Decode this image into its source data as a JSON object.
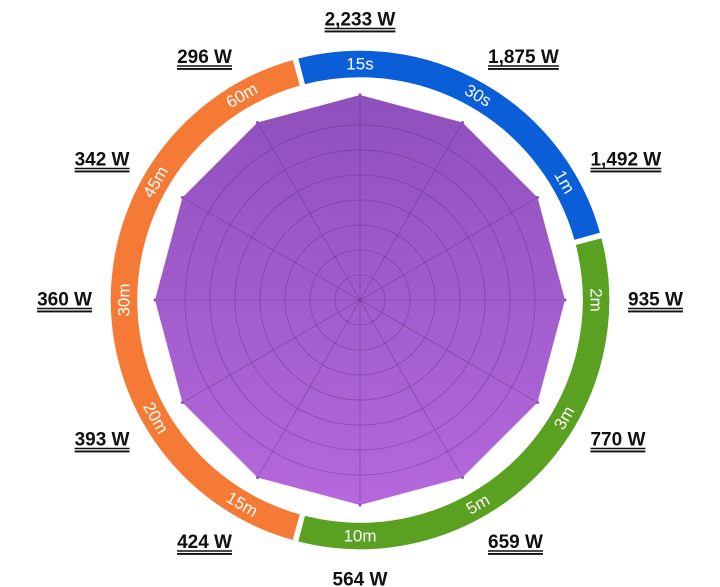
{
  "chart_data": {
    "type": "radar",
    "categories": [
      "15s",
      "30s",
      "1m",
      "2m",
      "3m",
      "5m",
      "10m",
      "15m",
      "20m",
      "30m",
      "45m",
      "60m"
    ],
    "values": [
      2233,
      1875,
      1492,
      935,
      770,
      659,
      564,
      424,
      393,
      360,
      342,
      296
    ],
    "value_labels": [
      "2,233 W",
      "1,875 W",
      "1,492 W",
      "935 W",
      "770 W",
      "659 W",
      "564 W",
      "424 W",
      "393 W",
      "360 W",
      "342 W",
      "296 W"
    ],
    "segments": [
      {
        "color": "#0a5fd8",
        "categories": [
          "15s",
          "30s",
          "1m"
        ]
      },
      {
        "color": "#5aa021",
        "categories": [
          "2m",
          "3m",
          "5m",
          "10m"
        ]
      },
      {
        "color": "#f57a35",
        "categories": [
          "15m",
          "20m",
          "30m",
          "45m",
          "60m"
        ]
      }
    ],
    "fill_colors": [
      "#8f50bc",
      "#b468dc"
    ],
    "grid": true,
    "title": "",
    "xlabel": "",
    "ylabel": ""
  }
}
